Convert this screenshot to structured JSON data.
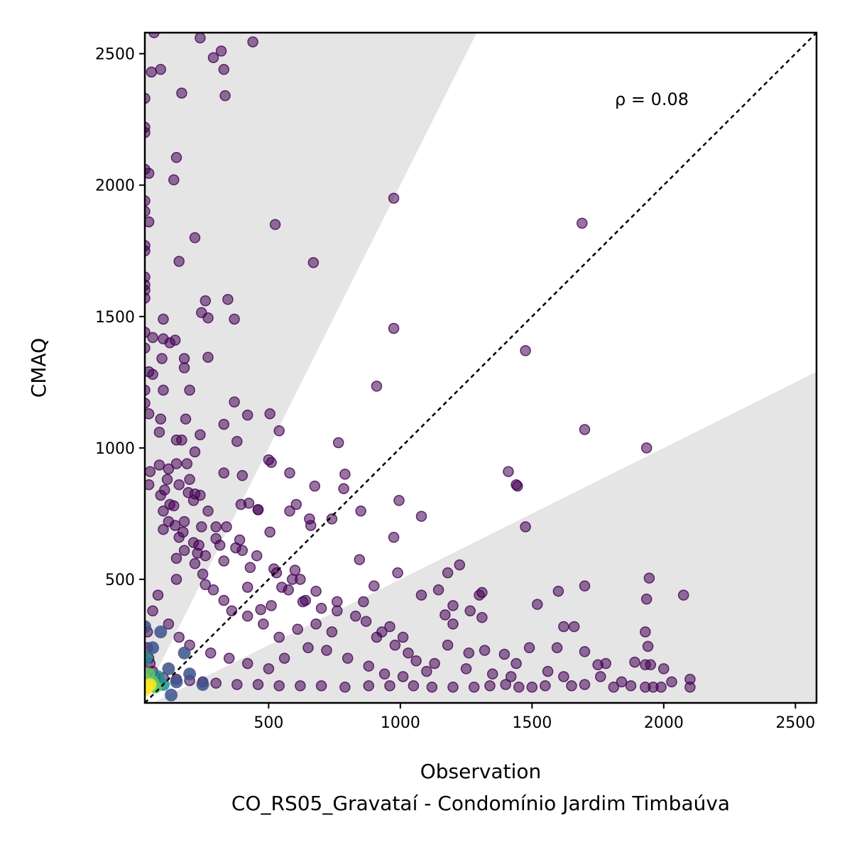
{
  "chart_data": {
    "type": "scatter",
    "xlabel": "Observation",
    "ylabel": "CMAQ",
    "subtitle": "CO_RS05_Gravataí - Condomínio Jardim Timbaúva",
    "annotation": "ρ = 0.08",
    "xlim": [
      30,
      2580
    ],
    "ylim": [
      30,
      2580
    ],
    "x_ticks": [
      500,
      1000,
      1500,
      2000,
      2500
    ],
    "y_ticks": [
      500,
      1000,
      1500,
      2000,
      2500
    ],
    "reference_line": "1:1",
    "shaded_regions": "outside factor-of-2 band (y > 2x and y < 0.5x)",
    "point_color": "#440154",
    "density_colormap": [
      "#440154",
      "#3b528b",
      "#21918c",
      "#5ec962",
      "#fde725"
    ],
    "grid": false,
    "points": [
      [
        65,
        2580
      ],
      [
        240,
        2560
      ],
      [
        440,
        2545
      ],
      [
        290,
        2485
      ],
      [
        320,
        2510
      ],
      [
        330,
        2440
      ],
      [
        90,
        2440
      ],
      [
        55,
        2430
      ],
      [
        170,
        2350
      ],
      [
        335,
        2340
      ],
      [
        30,
        2330
      ],
      [
        30,
        2220
      ],
      [
        30,
        2200
      ],
      [
        140,
        2020
      ],
      [
        45,
        2045
      ],
      [
        150,
        2105
      ],
      [
        30,
        2060
      ],
      [
        975,
        1950
      ],
      [
        525,
        1850
      ],
      [
        1690,
        1855
      ],
      [
        220,
        1800
      ],
      [
        45,
        1860
      ],
      [
        30,
        1940
      ],
      [
        30,
        1900
      ],
      [
        30,
        1770
      ],
      [
        30,
        1750
      ],
      [
        160,
        1710
      ],
      [
        670,
        1705
      ],
      [
        30,
        1650
      ],
      [
        30,
        1620
      ],
      [
        30,
        1600
      ],
      [
        30,
        1570
      ],
      [
        260,
        1560
      ],
      [
        345,
        1565
      ],
      [
        245,
        1515
      ],
      [
        270,
        1495
      ],
      [
        370,
        1490
      ],
      [
        100,
        1490
      ],
      [
        975,
        1455
      ],
      [
        30,
        1440
      ],
      [
        60,
        1420
      ],
      [
        100,
        1415
      ],
      [
        145,
        1410
      ],
      [
        125,
        1400
      ],
      [
        30,
        1380
      ],
      [
        1475,
        1370
      ],
      [
        180,
        1340
      ],
      [
        270,
        1345
      ],
      [
        95,
        1340
      ],
      [
        180,
        1305
      ],
      [
        45,
        1290
      ],
      [
        60,
        1280
      ],
      [
        910,
        1235
      ],
      [
        100,
        1220
      ],
      [
        200,
        1220
      ],
      [
        30,
        1220
      ],
      [
        30,
        1170
      ],
      [
        370,
        1175
      ],
      [
        45,
        1130
      ],
      [
        90,
        1110
      ],
      [
        185,
        1110
      ],
      [
        420,
        1125
      ],
      [
        505,
        1130
      ],
      [
        330,
        1090
      ],
      [
        1700,
        1070
      ],
      [
        540,
        1065
      ],
      [
        85,
        1060
      ],
      [
        240,
        1050
      ],
      [
        150,
        1030
      ],
      [
        170,
        1030
      ],
      [
        380,
        1025
      ],
      [
        765,
        1020
      ],
      [
        220,
        985
      ],
      [
        1935,
        1000
      ],
      [
        500,
        955
      ],
      [
        510,
        945
      ],
      [
        150,
        940
      ],
      [
        190,
        940
      ],
      [
        85,
        935
      ],
      [
        330,
        905
      ],
      [
        400,
        895
      ],
      [
        580,
        905
      ],
      [
        790,
        900
      ],
      [
        50,
        910
      ],
      [
        1410,
        910
      ],
      [
        115,
        880
      ],
      [
        1440,
        860
      ],
      [
        1445,
        855
      ],
      [
        160,
        860
      ],
      [
        45,
        860
      ],
      [
        675,
        855
      ],
      [
        195,
        830
      ],
      [
        220,
        825
      ],
      [
        240,
        820
      ],
      [
        105,
        840
      ],
      [
        785,
        845
      ],
      [
        215,
        800
      ],
      [
        425,
        790
      ],
      [
        460,
        765
      ],
      [
        395,
        785
      ],
      [
        605,
        785
      ],
      [
        995,
        800
      ],
      [
        125,
        785
      ],
      [
        140,
        780
      ],
      [
        580,
        760
      ],
      [
        850,
        760
      ],
      [
        460,
        765
      ],
      [
        1080,
        740
      ],
      [
        655,
        730
      ],
      [
        1475,
        700
      ],
      [
        245,
        700
      ],
      [
        340,
        700
      ],
      [
        180,
        720
      ],
      [
        145,
        705
      ],
      [
        175,
        680
      ],
      [
        100,
        690
      ],
      [
        505,
        680
      ],
      [
        740,
        730
      ],
      [
        660,
        705
      ],
      [
        375,
        620
      ],
      [
        300,
        655
      ],
      [
        315,
        630
      ],
      [
        215,
        640
      ],
      [
        235,
        630
      ],
      [
        260,
        590
      ],
      [
        400,
        610
      ],
      [
        975,
        660
      ],
      [
        230,
        600
      ],
      [
        150,
        580
      ],
      [
        330,
        570
      ],
      [
        430,
        545
      ],
      [
        845,
        575
      ],
      [
        1225,
        555
      ],
      [
        990,
        525
      ],
      [
        600,
        535
      ],
      [
        530,
        525
      ],
      [
        1180,
        525
      ],
      [
        1945,
        505
      ],
      [
        590,
        500
      ],
      [
        620,
        500
      ],
      [
        150,
        500
      ],
      [
        260,
        480
      ],
      [
        1700,
        475
      ],
      [
        680,
        455
      ],
      [
        900,
        475
      ],
      [
        420,
        470
      ],
      [
        550,
        470
      ],
      [
        1600,
        455
      ],
      [
        2075,
        440
      ],
      [
        1080,
        440
      ],
      [
        1145,
        460
      ],
      [
        1935,
        425
      ],
      [
        1300,
        440
      ],
      [
        1310,
        450
      ],
      [
        1200,
        400
      ],
      [
        1520,
        405
      ],
      [
        860,
        415
      ],
      [
        760,
        415
      ],
      [
        630,
        415
      ],
      [
        510,
        400
      ],
      [
        470,
        385
      ],
      [
        1265,
        380
      ],
      [
        1170,
        365
      ],
      [
        1310,
        355
      ],
      [
        1660,
        320
      ],
      [
        1930,
        300
      ],
      [
        1620,
        320
      ],
      [
        1490,
        240
      ],
      [
        1595,
        240
      ],
      [
        1200,
        330
      ],
      [
        1180,
        250
      ],
      [
        1395,
        215
      ],
      [
        1440,
        180
      ],
      [
        1700,
        225
      ],
      [
        1940,
        245
      ],
      [
        1750,
        175
      ],
      [
        1780,
        180
      ],
      [
        1890,
        185
      ],
      [
        1930,
        175
      ],
      [
        1950,
        175
      ],
      [
        2000,
        160
      ],
      [
        2100,
        120
      ],
      [
        2100,
        90
      ],
      [
        1990,
        90
      ],
      [
        1960,
        90
      ],
      [
        1930,
        90
      ],
      [
        1875,
        95
      ],
      [
        1810,
        90
      ],
      [
        1700,
        100
      ],
      [
        1650,
        95
      ],
      [
        1550,
        95
      ],
      [
        1500,
        90
      ],
      [
        1450,
        90
      ],
      [
        1400,
        100
      ],
      [
        1340,
        95
      ],
      [
        1280,
        90
      ],
      [
        1200,
        90
      ],
      [
        1120,
        90
      ],
      [
        1050,
        95
      ],
      [
        960,
        95
      ],
      [
        880,
        95
      ],
      [
        790,
        90
      ],
      [
        700,
        95
      ],
      [
        620,
        95
      ],
      [
        540,
        95
      ],
      [
        460,
        100
      ],
      [
        380,
        100
      ],
      [
        300,
        105
      ],
      [
        250,
        110
      ],
      [
        200,
        115
      ],
      [
        150,
        120
      ],
      [
        100,
        125
      ],
      [
        70,
        130
      ],
      [
        60,
        150
      ],
      [
        50,
        180
      ],
      [
        45,
        200
      ],
      [
        40,
        240
      ],
      [
        40,
        300
      ],
      [
        60,
        380
      ],
      [
        80,
        440
      ],
      [
        120,
        330
      ],
      [
        160,
        280
      ],
      [
        200,
        250
      ],
      [
        280,
        220
      ],
      [
        350,
        200
      ],
      [
        420,
        180
      ],
      [
        500,
        160
      ],
      [
        560,
        200
      ],
      [
        650,
        240
      ],
      [
        720,
        230
      ],
      [
        800,
        200
      ],
      [
        880,
        170
      ],
      [
        940,
        140
      ],
      [
        1010,
        130
      ],
      [
        1100,
        150
      ],
      [
        1250,
        160
      ],
      [
        1350,
        140
      ],
      [
        1420,
        130
      ],
      [
        1560,
        150
      ],
      [
        1620,
        130
      ],
      [
        1760,
        130
      ],
      [
        1840,
        110
      ],
      [
        2030,
        110
      ],
      [
        1060,
        190
      ],
      [
        1130,
        180
      ],
      [
        1260,
        220
      ],
      [
        1320,
        230
      ],
      [
        910,
        280
      ],
      [
        960,
        320
      ],
      [
        1010,
        280
      ],
      [
        740,
        300
      ],
      [
        680,
        330
      ],
      [
        610,
        310
      ],
      [
        540,
        280
      ],
      [
        480,
        330
      ],
      [
        420,
        360
      ],
      [
        360,
        380
      ],
      [
        330,
        420
      ],
      [
        290,
        460
      ],
      [
        250,
        520
      ],
      [
        220,
        560
      ],
      [
        180,
        610
      ],
      [
        160,
        660
      ],
      [
        120,
        720
      ],
      [
        100,
        760
      ],
      [
        90,
        820
      ],
      [
        120,
        920
      ],
      [
        200,
        880
      ],
      [
        270,
        760
      ],
      [
        300,
        700
      ],
      [
        390,
        650
      ],
      [
        455,
        590
      ],
      [
        520,
        540
      ],
      [
        575,
        460
      ],
      [
        640,
        420
      ],
      [
        700,
        390
      ],
      [
        760,
        380
      ],
      [
        830,
        360
      ],
      [
        870,
        340
      ],
      [
        930,
        300
      ],
      [
        980,
        250
      ],
      [
        1030,
        220
      ]
    ],
    "density_core": [
      [
        30,
        80,
        4
      ],
      [
        40,
        90,
        4
      ],
      [
        50,
        100,
        4
      ],
      [
        60,
        110,
        3
      ],
      [
        45,
        140,
        3
      ],
      [
        70,
        90,
        3
      ],
      [
        80,
        130,
        2
      ],
      [
        100,
        100,
        2
      ],
      [
        35,
        200,
        2
      ],
      [
        120,
        160,
        1
      ],
      [
        150,
        110,
        1
      ],
      [
        60,
        240,
        1
      ],
      [
        200,
        140,
        1
      ],
      [
        180,
        220,
        1
      ],
      [
        90,
        300,
        1
      ],
      [
        30,
        320,
        1
      ],
      [
        250,
        100,
        1
      ],
      [
        130,
        60,
        1
      ]
    ]
  }
}
